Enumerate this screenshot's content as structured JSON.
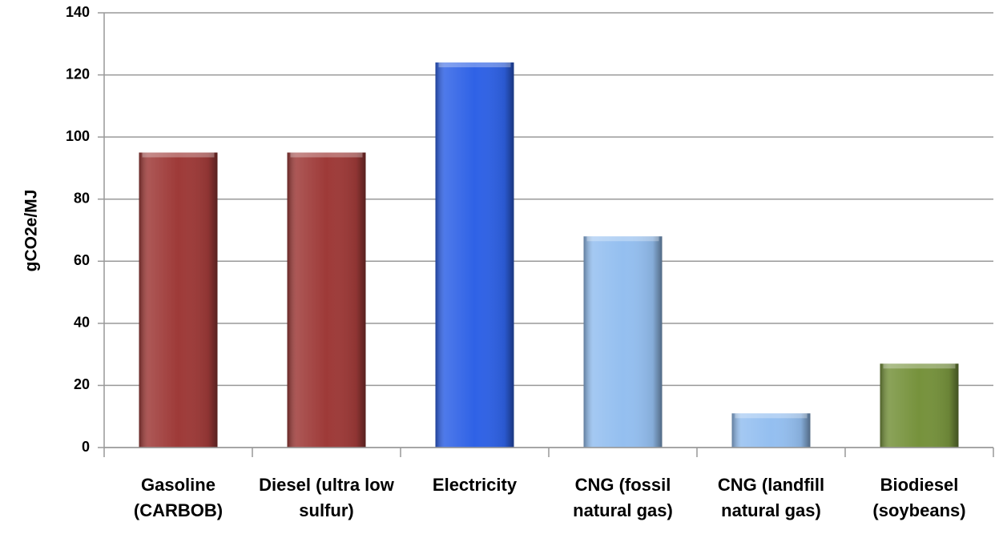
{
  "chart_data": {
    "type": "bar",
    "y_label": "gCO2e/MJ",
    "categories": [
      "Gasoline (CARBOB)",
      "Diesel (ultra low sulfur)",
      "Electricity",
      "CNG (fossil natural gas)",
      "CNG (landfill natural gas)",
      "Biodiesel (soybeans)"
    ],
    "values": [
      95,
      95,
      124,
      68,
      11,
      27
    ],
    "colors": [
      "#9e3a38",
      "#9e3a38",
      "#2f62e6",
      "#94bff0",
      "#94bff0",
      "#76923c"
    ],
    "ylim": [
      0,
      140
    ],
    "yticks": [
      0,
      20,
      40,
      60,
      80,
      100,
      120,
      140
    ],
    "grid": true
  }
}
